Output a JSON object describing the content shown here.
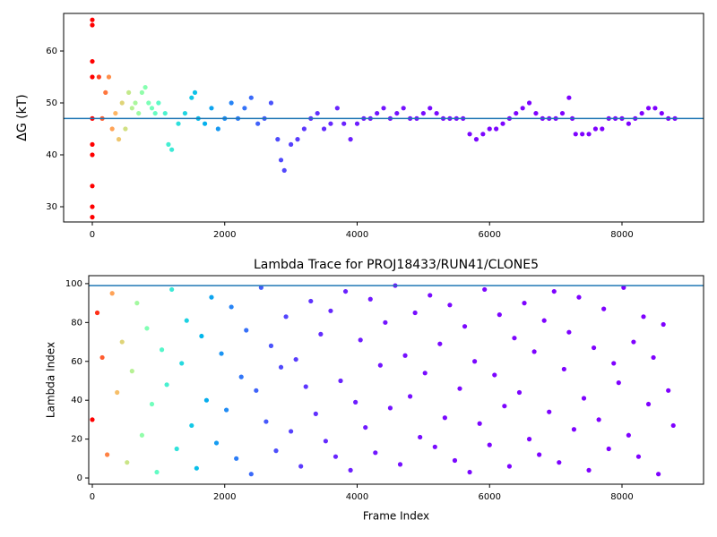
{
  "chart_data": [
    {
      "type": "scatter",
      "ylabel": "ΔG (kT)",
      "colormap": "rainbow",
      "x": [
        0,
        0,
        0,
        0,
        0,
        0,
        0,
        0,
        0,
        0,
        100,
        150,
        200,
        250,
        300,
        350,
        400,
        450,
        500,
        550,
        600,
        650,
        700,
        750,
        800,
        850,
        900,
        950,
        1000,
        1100,
        1150,
        1200,
        1300,
        1400,
        1500,
        1550,
        1600,
        1700,
        1800,
        1900,
        2000,
        2100,
        2200,
        2300,
        2400,
        2500,
        2600,
        2700,
        2800,
        2850,
        2900,
        3000,
        3100,
        3200,
        3300,
        3400,
        3500,
        3600,
        3700,
        3800,
        3900,
        4000,
        4100,
        4200,
        4300,
        4400,
        4500,
        4600,
        4700,
        4800,
        4900,
        5000,
        5100,
        5200,
        5300,
        5400,
        5500,
        5600,
        5700,
        5800,
        5900,
        6000,
        6100,
        6200,
        6300,
        6400,
        6500,
        6600,
        6700,
        6800,
        6900,
        7000,
        7100,
        7200,
        7250,
        7300,
        7400,
        7500,
        7600,
        7700,
        7800,
        7900,
        8000,
        8100,
        8200,
        8300,
        8400,
        8500,
        8600,
        8700,
        8800
      ],
      "values": [
        66,
        65,
        58,
        55,
        47,
        42,
        40,
        34,
        30,
        28,
        55,
        47,
        52,
        55,
        45,
        48,
        43,
        50,
        45,
        52,
        49,
        50,
        48,
        52,
        53,
        50,
        49,
        48,
        50,
        48,
        42,
        41,
        46,
        48,
        51,
        52,
        47,
        46,
        49,
        45,
        47,
        50,
        47,
        49,
        51,
        46,
        47,
        50,
        43,
        39,
        37,
        42,
        43,
        45,
        47,
        48,
        45,
        46,
        49,
        46,
        43,
        46,
        47,
        47,
        48,
        49,
        47,
        48,
        49,
        47,
        47,
        48,
        49,
        48,
        47,
        47,
        47,
        47,
        44,
        43,
        44,
        45,
        45,
        46,
        47,
        48,
        49,
        50,
        48,
        47,
        47,
        47,
        48,
        51,
        47,
        44,
        44,
        44,
        45,
        45,
        47,
        47,
        47,
        46,
        47,
        48,
        49,
        49,
        48,
        47,
        47
      ],
      "xlim": [
        -433,
        9232
      ],
      "ylim": [
        27.07,
        67.24
      ],
      "xticks": [
        0,
        2000,
        4000,
        6000,
        8000
      ],
      "yticks": [
        30,
        40,
        50,
        60
      ],
      "hline": 47
    },
    {
      "type": "scatter",
      "title": "Lambda Trace for PROJ18433/RUN41/CLONE5",
      "xlabel": "Frame Index",
      "ylabel": "Lambda Index",
      "colormap": "rainbow",
      "x": [
        0,
        75,
        150,
        225,
        300,
        375,
        450,
        525,
        600,
        675,
        750,
        825,
        900,
        975,
        1050,
        1125,
        1200,
        1275,
        1350,
        1425,
        1500,
        1575,
        1650,
        1725,
        1800,
        1875,
        1950,
        2025,
        2100,
        2175,
        2250,
        2325,
        2400,
        2475,
        2550,
        2625,
        2700,
        2775,
        2850,
        2925,
        3000,
        3075,
        3150,
        3225,
        3300,
        3375,
        3450,
        3525,
        3600,
        3675,
        3750,
        3825,
        3900,
        3975,
        4050,
        4125,
        4200,
        4275,
        4350,
        4425,
        4500,
        4575,
        4650,
        4725,
        4800,
        4875,
        4950,
        5025,
        5100,
        5175,
        5250,
        5325,
        5400,
        5475,
        5550,
        5625,
        5700,
        5775,
        5850,
        5925,
        6000,
        6075,
        6150,
        6225,
        6300,
        6375,
        6450,
        6525,
        6600,
        6675,
        6750,
        6825,
        6900,
        6975,
        7050,
        7125,
        7200,
        7275,
        7350,
        7425,
        7500,
        7575,
        7650,
        7725,
        7800,
        7875,
        7950,
        8025,
        8100,
        8175,
        8250,
        8325,
        8400,
        8475,
        8550,
        8625,
        8700,
        8775
      ],
      "values": [
        30,
        85,
        62,
        12,
        95,
        44,
        70,
        8,
        55,
        90,
        22,
        77,
        38,
        3,
        66,
        48,
        97,
        15,
        59,
        81,
        27,
        5,
        73,
        40,
        93,
        18,
        64,
        35,
        88,
        10,
        52,
        76,
        2,
        45,
        98,
        29,
        68,
        14,
        57,
        83,
        24,
        61,
        6,
        47,
        91,
        33,
        74,
        19,
        86,
        11,
        50,
        96,
        4,
        39,
        71,
        26,
        92,
        13,
        58,
        80,
        36,
        99,
        7,
        63,
        42,
        85,
        21,
        54,
        94,
        16,
        69,
        31,
        89,
        9,
        46,
        78,
        3,
        60,
        28,
        97,
        17,
        53,
        84,
        37,
        6,
        72,
        44,
        90,
        20,
        65,
        12,
        81,
        34,
        96,
        8,
        56,
        75,
        25,
        93,
        41,
        4,
        67,
        30,
        87,
        15,
        59,
        49,
        98,
        22,
        70,
        11,
        83,
        38,
        62,
        2,
        79,
        45,
        27
      ],
      "xlim": [
        -54,
        9232
      ],
      "ylim": [
        -3.2,
        104.1
      ],
      "xticks": [
        0,
        2000,
        4000,
        6000,
        8000
      ],
      "yticks": [
        0,
        20,
        40,
        60,
        80,
        100
      ],
      "hline": 99
    }
  ]
}
